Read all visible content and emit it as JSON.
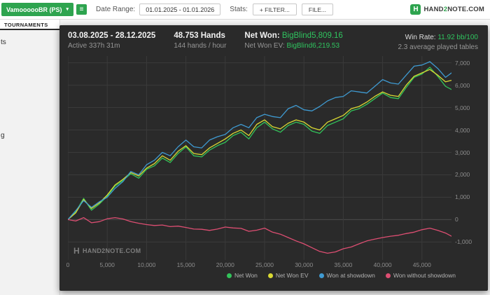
{
  "colors": {
    "accent_green": "#2ea44f",
    "value_green": "#2fc45f",
    "panel_bg": "#2a2a2a",
    "grid": "#3a3a3a",
    "zero_line": "#4a4a4a"
  },
  "icons": {
    "caret_down": "▾",
    "grid": "≡",
    "brand_h": "H"
  },
  "topbar": {
    "account": "VamoooooBR (PS)",
    "date_range_label": "Date Range:",
    "date_range_value": "01.01.2025 - 01.01.2026",
    "stats_label": "Stats:",
    "filter_button": "+ FILTER...",
    "file_button": "FILE...",
    "brand_part1": "HAND",
    "brand_part2": "2",
    "brand_part3": "NOTE.COM"
  },
  "sidebar": {
    "tab": "TOURNAMENTS",
    "item_fragments": [
      "ts",
      "g"
    ]
  },
  "panel": {
    "date_range": "03.08.2025 - 28.12.2025",
    "active_time": "Active 337h 31m",
    "hands": "48.753 Hands",
    "hands_per_hour": "144 hands / hour",
    "net_won_label": "Net Won:",
    "net_won_value": "BigBlind5,809.16",
    "net_won_ev_label": "Net Won  EV:",
    "net_won_ev_value": "BigBlind6,219.53",
    "win_rate_label": "Win Rate:",
    "win_rate_value": "11.92 bb/100",
    "avg_tables": "2.3 average played tables",
    "watermark": "HAND2NOTE.COM"
  },
  "chart_data": {
    "type": "line",
    "xlim": [
      0,
      48753
    ],
    "ylim": [
      -1800,
      7300
    ],
    "ytick_step": 1000,
    "xticks": [
      0,
      5000,
      10000,
      15000,
      20000,
      25000,
      30000,
      35000,
      40000,
      45000
    ],
    "grid": true,
    "legend_position": "bottom-right",
    "x": [
      0,
      1000,
      2000,
      3000,
      4000,
      5000,
      6000,
      7000,
      8000,
      9000,
      10000,
      11000,
      12000,
      13000,
      14000,
      15000,
      16000,
      17000,
      18000,
      19000,
      20000,
      21000,
      22000,
      23000,
      24000,
      25000,
      26000,
      27000,
      28000,
      29000,
      30000,
      31000,
      32000,
      33000,
      34000,
      35000,
      36000,
      37000,
      38000,
      39000,
      40000,
      41000,
      42000,
      43000,
      44000,
      45000,
      46000,
      47000,
      48000,
      48753
    ],
    "series": [
      {
        "name": "Net Won",
        "color": "#32c35a",
        "values": [
          0,
          350,
          950,
          420,
          700,
          1050,
          1500,
          1750,
          2050,
          1850,
          2250,
          2400,
          2750,
          2550,
          2950,
          3250,
          2850,
          2800,
          3100,
          3300,
          3450,
          3750,
          3900,
          3600,
          4100,
          4350,
          4050,
          3900,
          4200,
          4350,
          4250,
          3950,
          3850,
          4200,
          4350,
          4500,
          4850,
          4950,
          5150,
          5400,
          5650,
          5450,
          5400,
          5900,
          6350,
          6500,
          6800,
          6400,
          5950,
          5809
        ]
      },
      {
        "name": "Net Won  EV",
        "color": "#d9d933",
        "values": [
          0,
          300,
          900,
          500,
          750,
          1100,
          1550,
          1800,
          2100,
          1950,
          2300,
          2500,
          2850,
          2650,
          3050,
          3300,
          2950,
          2900,
          3200,
          3400,
          3600,
          3850,
          4000,
          3750,
          4250,
          4450,
          4150,
          4050,
          4300,
          4450,
          4350,
          4100,
          4000,
          4350,
          4500,
          4650,
          4950,
          5050,
          5250,
          5500,
          5700,
          5550,
          5500,
          6000,
          6400,
          6550,
          6700,
          6450,
          6150,
          6219
        ]
      },
      {
        "name": "Won at showdown",
        "color": "#3f9ad1",
        "values": [
          0,
          400,
          850,
          550,
          800,
          1000,
          1400,
          1700,
          2150,
          2000,
          2450,
          2650,
          3000,
          2850,
          3250,
          3550,
          3250,
          3200,
          3550,
          3700,
          3800,
          4100,
          4250,
          4100,
          4550,
          4700,
          4600,
          4550,
          4950,
          5100,
          4900,
          4850,
          5050,
          5300,
          5450,
          5500,
          5750,
          5700,
          5650,
          5950,
          6250,
          6100,
          6050,
          6450,
          6850,
          6900,
          7050,
          6750,
          6350,
          6550
        ]
      },
      {
        "name": "Won without showdown",
        "color": "#dd4e72",
        "values": [
          0,
          -60,
          90,
          -140,
          -90,
          40,
          90,
          30,
          -90,
          -160,
          -220,
          -260,
          -240,
          -310,
          -290,
          -350,
          -420,
          -430,
          -480,
          -420,
          -330,
          -370,
          -390,
          -520,
          -470,
          -380,
          -560,
          -650,
          -800,
          -950,
          -1080,
          -1250,
          -1420,
          -1500,
          -1440,
          -1300,
          -1220,
          -1080,
          -950,
          -870,
          -800,
          -740,
          -700,
          -620,
          -560,
          -450,
          -380,
          -480,
          -600,
          -741
        ]
      }
    ]
  }
}
